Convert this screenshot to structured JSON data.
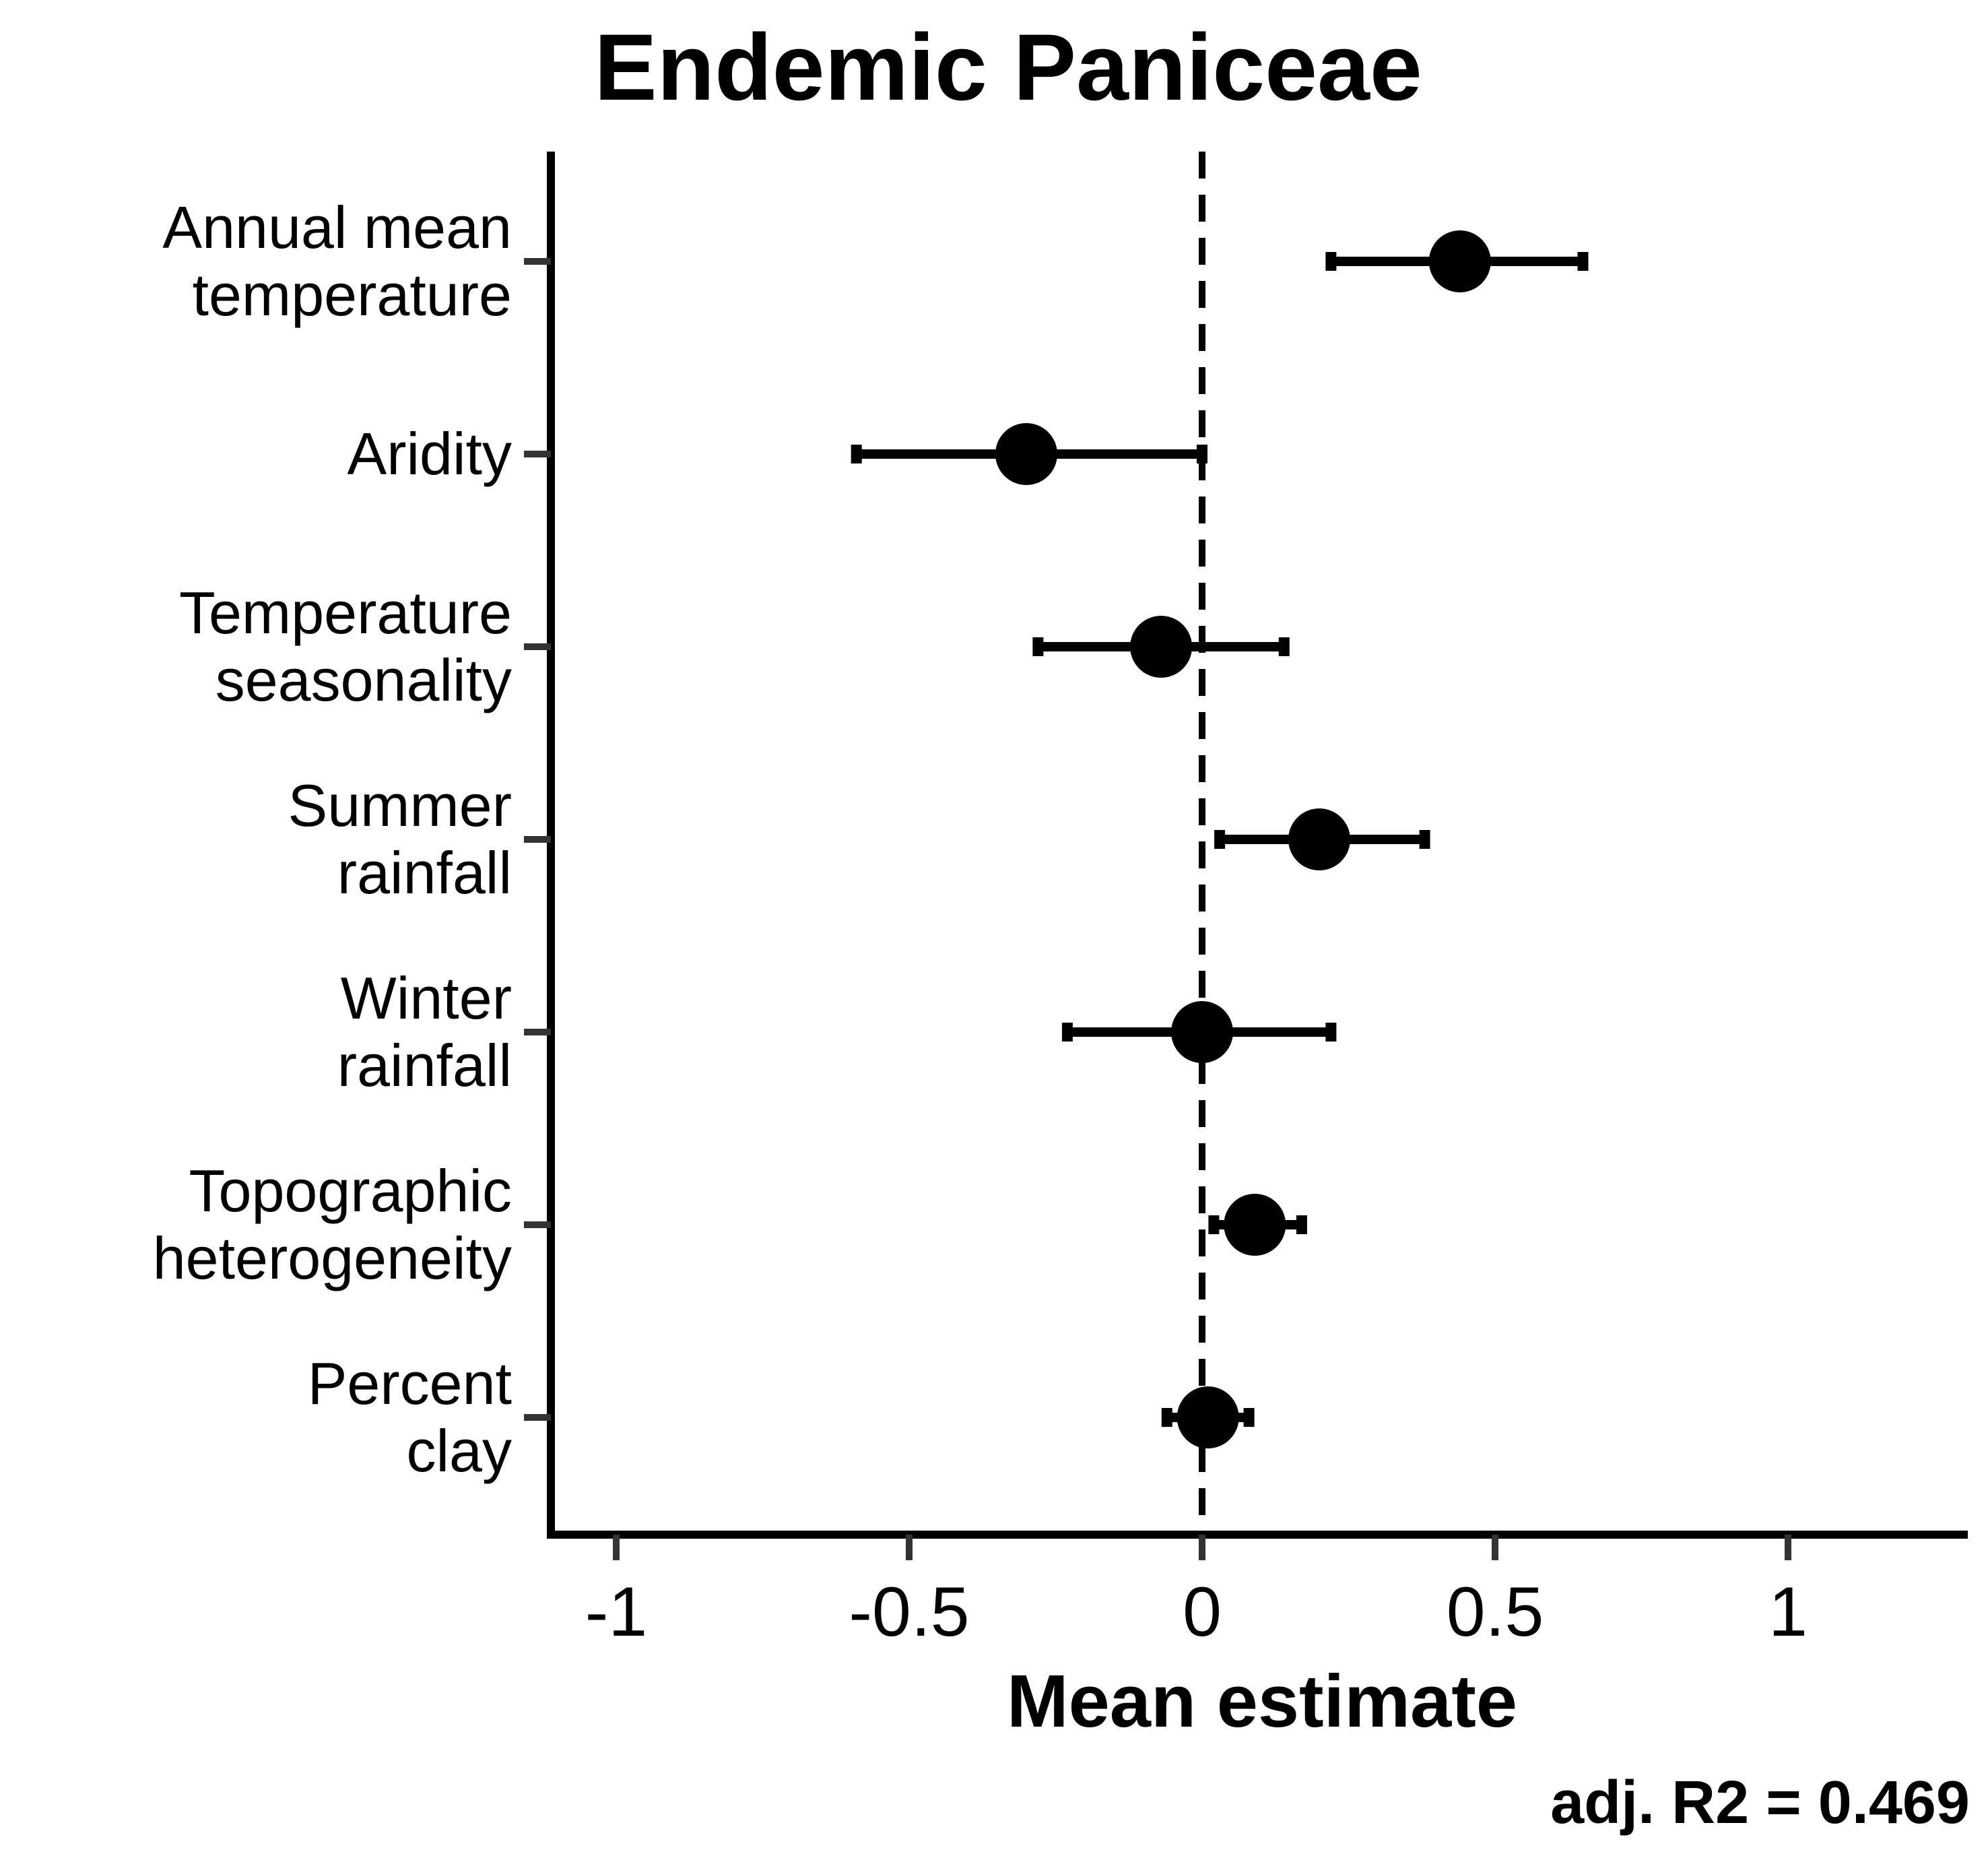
{
  "chart_data": {
    "type": "forest",
    "title": "Endemic Paniceae",
    "xlabel": "Mean estimate",
    "ylabel": "",
    "xlim": [
      -1.11,
      1.31
    ],
    "xticks": [
      -1,
      -0.5,
      0,
      0.5,
      1
    ],
    "xtick_labels": [
      "-1",
      "-0.5",
      "0",
      "0.5",
      "1"
    ],
    "reference_line": 0,
    "grid": false,
    "legend": "none",
    "annotation": "adj. R2 = 0.469",
    "rows": [
      {
        "label": [
          "Annual mean",
          "temperature"
        ],
        "estimate": 0.44,
        "lower": 0.22,
        "upper": 0.65
      },
      {
        "label": [
          "Aridity"
        ],
        "estimate": -0.3,
        "lower": -0.59,
        "upper": 0.0
      },
      {
        "label": [
          "Temperature",
          "seasonality"
        ],
        "estimate": -0.07,
        "lower": -0.28,
        "upper": 0.14
      },
      {
        "label": [
          "Summer",
          "rainfall"
        ],
        "estimate": 0.2,
        "lower": 0.03,
        "upper": 0.38
      },
      {
        "label": [
          "Winter",
          "rainfall"
        ],
        "estimate": 0.0,
        "lower": -0.23,
        "upper": 0.22
      },
      {
        "label": [
          "Topographic",
          "heterogeneity"
        ],
        "estimate": 0.09,
        "lower": 0.02,
        "upper": 0.17
      },
      {
        "label": [
          "Percent",
          "clay"
        ],
        "estimate": 0.01,
        "lower": -0.06,
        "upper": 0.08
      }
    ]
  }
}
